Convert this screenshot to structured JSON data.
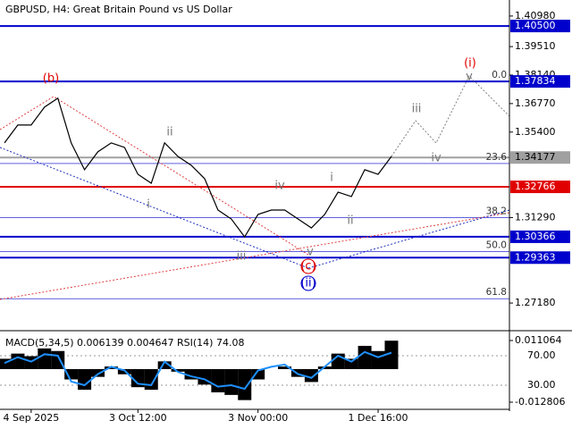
{
  "chart_data": {
    "type": "line",
    "title": "GBPUSD, H4:  Great Britain Pound vs US Dollar",
    "color": "#000000",
    "categories": [
      null,
      null,
      "4 Sep 2025",
      null,
      null,
      null,
      null,
      null,
      null,
      null,
      "3 Oct 12:00",
      null,
      null,
      null,
      null,
      null,
      null,
      null,
      null,
      "3 Nov 00:00",
      null,
      null,
      null,
      null,
      null,
      null,
      null,
      null,
      "1 Dec 16:00",
      null
    ],
    "values": [
      1.3488,
      1.3574,
      1.3574,
      1.366,
      1.3703,
      1.3488,
      1.3359,
      1.3445,
      1.3488,
      1.3466,
      1.3337,
      1.3294,
      1.3488,
      1.3423,
      1.338,
      1.3316,
      1.3165,
      1.3122,
      1.3036,
      1.3144,
      1.3165,
      1.3165,
      1.3122,
      1.3079,
      1.3144,
      1.3251,
      1.323,
      1.3359,
      1.3337,
      1.3423
    ],
    "ylim": [
      1.2585,
      1.4175
    ],
    "yticks": [
      {
        "value": 1.4098,
        "label": "1.40980"
      },
      {
        "value": 1.3951,
        "label": "1.39510"
      },
      {
        "value": 1.3814,
        "label": "1.38140"
      },
      {
        "value": 1.3677,
        "label": "1.36770"
      },
      {
        "value": 1.354,
        "label": "1.35400"
      },
      {
        "value": 1.3129,
        "label": "1.31290"
      },
      {
        "value": 1.2718,
        "label": "1.27180"
      }
    ],
    "levels": [
      {
        "value": 1.405,
        "label": "1.40500",
        "color": "#0000cc"
      },
      {
        "value": 1.37834,
        "label": "1.37834",
        "color": "#0000cc"
      },
      {
        "value": 1.34177,
        "label": "1.34177",
        "color": "#a0a0a0"
      },
      {
        "value": 1.32766,
        "label": "1.32766",
        "color": "#e00000"
      },
      {
        "value": 1.30366,
        "label": "1.30366",
        "color": "#0000cc"
      },
      {
        "value": 1.29363,
        "label": "1.29363",
        "color": "#0000cc"
      }
    ],
    "fib": [
      {
        "value": 1.37834,
        "label": "0.0"
      },
      {
        "value": 1.3389,
        "label": "23.6"
      },
      {
        "value": 1.3129,
        "label": "38.2"
      },
      {
        "value": 1.2966,
        "label": "50.0"
      },
      {
        "value": 1.2739,
        "label": "61.8"
      }
    ],
    "waves": [
      "(b)",
      "(c)",
      "(ii)",
      "(i)",
      "i",
      "ii",
      "iii",
      "iv",
      "v",
      "i",
      "ii",
      "iii",
      "iv",
      "v"
    ],
    "indicator": {
      "type": "bar",
      "label": "MACD(5,34,5) 0.006139 0.004647 RSI(14) 74.08",
      "color": "#000000",
      "values": [
        0.004,
        0.006,
        0.005,
        0.008,
        0.007,
        -0.004,
        -0.008,
        -0.003,
        0.001,
        -0.002,
        -0.007,
        -0.008,
        0.003,
        -0.001,
        -0.004,
        -0.006,
        -0.009,
        -0.01,
        -0.012,
        -0.004,
        0.0,
        0.001,
        -0.003,
        -0.005,
        0.001,
        0.006,
        0.004,
        0.009,
        0.007,
        0.011
      ],
      "ylim": [
        -0.01454,
        0.01418
      ],
      "yticks": [
        0.011064,
        -0.012806
      ],
      "rsi": {
        "color": "#1e90ff",
        "values": [
          60,
          68,
          62,
          72,
          70,
          35,
          30,
          45,
          55,
          50,
          32,
          30,
          62,
          48,
          42,
          38,
          28,
          30,
          25,
          50,
          55,
          58,
          45,
          40,
          55,
          70,
          62,
          75,
          68,
          74.08
        ]
      },
      "y2lim": [
        0.9,
        101.5
      ],
      "y2ticks": [
        {
          "value": 70,
          "label": "70.00"
        },
        {
          "value": 30,
          "label": "30.00"
        }
      ]
    }
  }
}
